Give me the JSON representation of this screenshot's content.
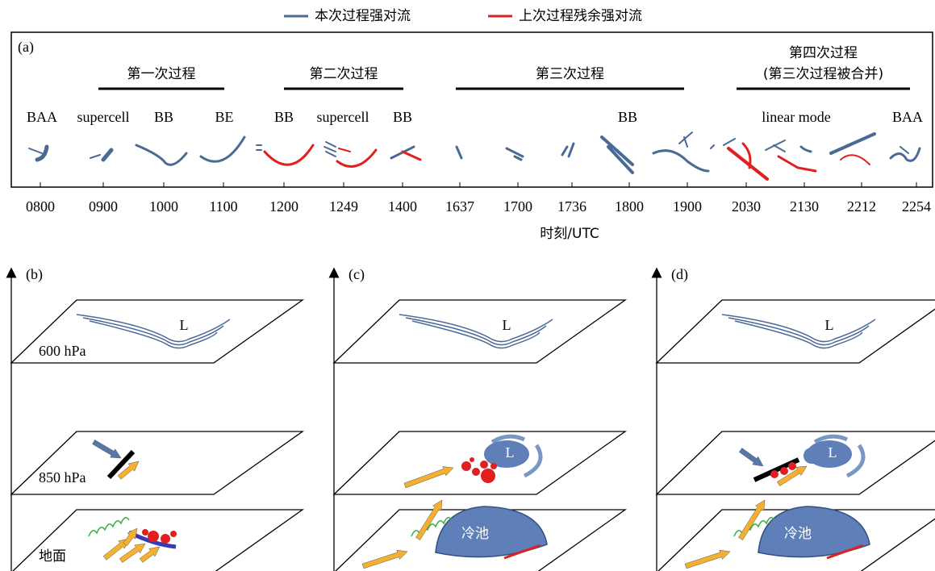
{
  "legend": {
    "current": "本次过程强对流",
    "previous": "上次过程残余强对流"
  },
  "panel_a": {
    "label": "(a)",
    "processes": [
      {
        "label": "第一次过程"
      },
      {
        "label": "第二次过程"
      },
      {
        "label": "第三次过程"
      },
      {
        "label": "第四次过程",
        "sublabel": "(第三次过程被合并)"
      }
    ],
    "modes": [
      "BAA",
      "supercell",
      "BB",
      "BE",
      "BB",
      "supercell",
      "BB",
      "BB",
      "linear mode",
      "BAA"
    ],
    "times": [
      "0800",
      "0900",
      "1000",
      "1100",
      "1200",
      "1249",
      "1400",
      "1637",
      "1700",
      "1736",
      "1800",
      "1900",
      "2030",
      "2130",
      "2212",
      "2254"
    ],
    "x_label": "时刻/UTC"
  },
  "panels": [
    {
      "label": "(b)",
      "levels": [
        "600 hPa",
        "850 hPa",
        "地面"
      ],
      "low_600": "L"
    },
    {
      "label": "(c)",
      "low_600": "L",
      "low_850": "L",
      "cold_pool": "冷池"
    },
    {
      "label": "(d)",
      "low_600": "L",
      "low_850": "L",
      "cold_pool": "冷池"
    }
  ]
}
